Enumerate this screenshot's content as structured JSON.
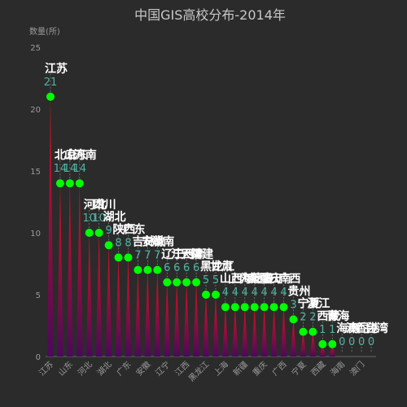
{
  "chart_data": {
    "type": "bar",
    "title": "中国GIS高校分布-2014年",
    "ylabel": "数量(所)",
    "xlabel": "",
    "ylim": [
      0,
      25
    ],
    "yticks": [
      0,
      5,
      10,
      15,
      20,
      25
    ],
    "grid": false,
    "categories": [
      "江苏",
      "北京",
      "山东",
      "河南",
      "河北",
      "四川",
      "湖北",
      "陕西",
      "广东",
      "吉林",
      "安徽",
      "湖南",
      "辽宁",
      "江西",
      "天津",
      "福建",
      "黑龙江",
      "甘肃",
      "山西",
      "上海",
      "内蒙古",
      "新疆",
      "重庆",
      "云南",
      "广西",
      "贵州",
      "宁夏",
      "浙江",
      "西藏",
      "青海",
      "海南",
      "澳门",
      "香港",
      "台湾"
    ],
    "x_tick_labels": [
      "江苏",
      "山东",
      "河北",
      "湖北",
      "广东",
      "安徽",
      "辽宁",
      "江西",
      "黑龙江",
      "上海",
      "新疆",
      "重庆",
      "广西",
      "宁夏",
      "西藏",
      "海南",
      "澳门"
    ],
    "values": [
      21,
      14,
      14,
      14,
      10,
      10,
      9,
      8,
      8,
      7,
      7,
      7,
      6,
      6,
      6,
      6,
      5,
      5,
      4,
      4,
      4,
      4,
      4,
      4,
      4,
      3,
      2,
      2,
      1,
      1,
      0,
      0,
      0,
      0
    ],
    "colors": {
      "background": "#2b2b2b",
      "marker": "#00ff00",
      "bar_top": "#e0101e",
      "bar_bottom": "#4a0a5a",
      "value_label": "#4fb3a0",
      "name_label": "#ffffff",
      "axis": "#6a6a6a",
      "dashed_line": "#888888"
    }
  }
}
